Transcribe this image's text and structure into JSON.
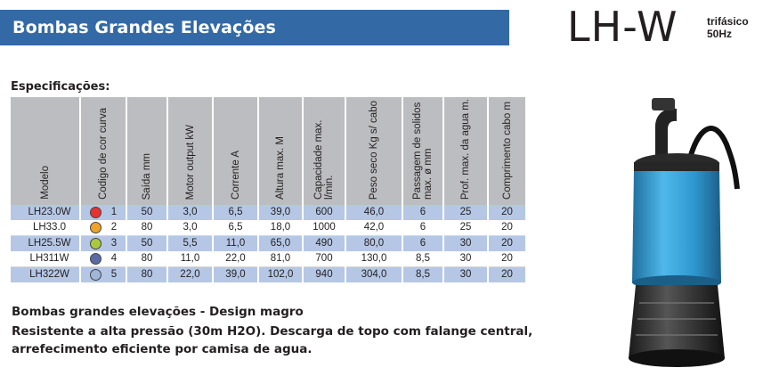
{
  "header": {
    "title": "Bombas Grandes Elevações",
    "model_code": "LH-W",
    "phase": "trifásico",
    "frequency": "50Hz"
  },
  "specs": {
    "heading": "Especificações:",
    "columns": [
      "Modelo",
      "Codigo de cor curva",
      "Saída mm",
      "Motor output kW",
      "Corrente A",
      "Altura max. M",
      "Capacidade max. l/min.",
      "Peso seco Kg s/ cabo",
      "Passagem de solidos max. ø mm",
      "Prof. max. da agua m.",
      "Comprimento cabo m"
    ],
    "rows": [
      {
        "model": "LH23.0W",
        "code": "1",
        "color": "#e8312f",
        "outlet": "50",
        "motor": "3,0",
        "current": "6,5",
        "height": "39,0",
        "capacity": "600",
        "weight": "46,0",
        "solids": "6",
        "depth": "25",
        "cable": "20"
      },
      {
        "model": "LH33.0",
        "code": "2",
        "color": "#f0a32a",
        "outlet": "80",
        "motor": "3,0",
        "current": "6,5",
        "height": "18,0",
        "capacity": "1000",
        "weight": "42,0",
        "solids": "6",
        "depth": "25",
        "cable": "20"
      },
      {
        "model": "LH25.5W",
        "code": "3",
        "color": "#a9c93d",
        "outlet": "50",
        "motor": "5,5",
        "current": "11,0",
        "height": "65,0",
        "capacity": "490",
        "weight": "80,0",
        "solids": "6",
        "depth": "30",
        "cable": "20"
      },
      {
        "model": "LH311W",
        "code": "4",
        "color": "#5a6aa6",
        "outlet": "80",
        "motor": "11,0",
        "current": "22,0",
        "height": "81,0",
        "capacity": "700",
        "weight": "130,0",
        "solids": "8,5",
        "depth": "30",
        "cable": "20"
      },
      {
        "model": "LH322W",
        "code": "5",
        "color": "#9fb5d9",
        "outlet": "80",
        "motor": "22,0",
        "current": "39,0",
        "height": "102,0",
        "capacity": "940",
        "weight": "304,0",
        "solids": "8,5",
        "depth": "30",
        "cable": "20"
      }
    ]
  },
  "description": {
    "line1": "Bombas grandes elevações - Design magro",
    "line2": "Resistente a alta pressão (30m H2O). Descarga de topo com falange central,",
    "line3": "arrefecimento eficiente por camisa de agua."
  },
  "colors": {
    "banner": "#336aa6",
    "header_bg": "#bcbdc0",
    "row_blue": "#b5c7e5",
    "pump_body": "#2f9fd8"
  }
}
